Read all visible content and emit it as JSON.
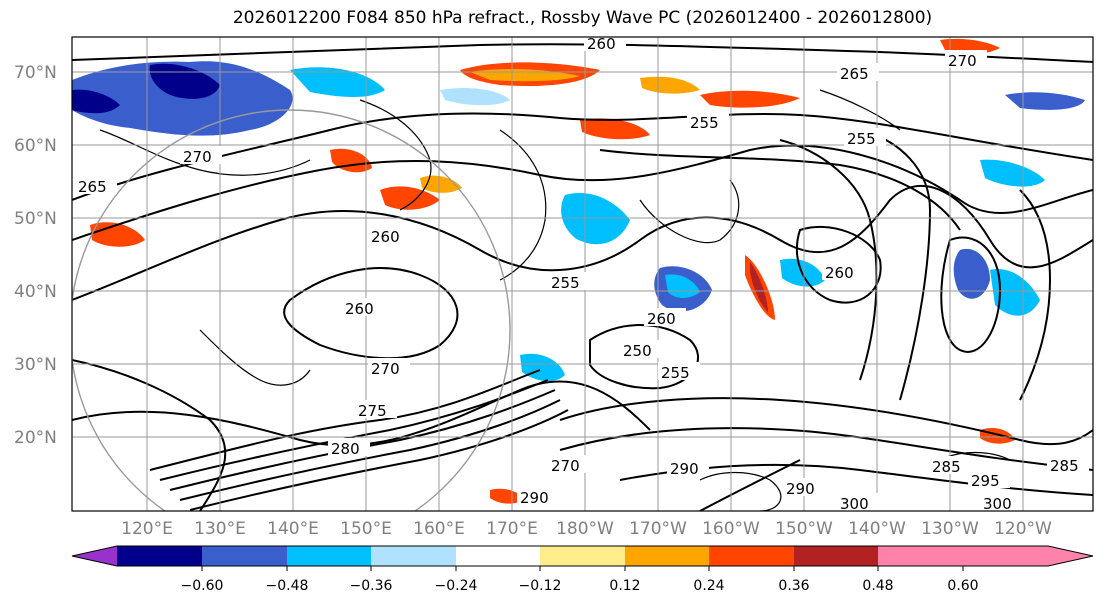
{
  "title": "2026012200 F084 850 hPa refract., Rossby Wave PC (2026012400 - 2026012800)",
  "lat_labels": [
    "70°N",
    "60°N",
    "50°N",
    "40°N",
    "30°N",
    "20°N"
  ],
  "lon_labels": [
    "120°E",
    "130°E",
    "140°E",
    "150°E",
    "160°E",
    "170°E",
    "180°W",
    "170°W",
    "160°W",
    "150°W",
    "140°W",
    "130°W",
    "120°W"
  ],
  "colorbar": {
    "colors": [
      "#9932cc",
      "#00008b",
      "#3a5fcd",
      "#00bfff",
      "#b0e2ff",
      "#ffffff",
      "#ffec8b",
      "#ffa500",
      "#ff4500",
      "#b22222",
      "#ff82ab"
    ],
    "ticks": [
      "−0.60",
      "−0.48",
      "−0.36",
      "−0.24",
      "−0.12",
      "0.12",
      "0.24",
      "0.36",
      "0.48",
      "0.60"
    ]
  },
  "contour_labels": [
    "260",
    "265",
    "270",
    "270",
    "255",
    "255",
    "260",
    "260",
    "265",
    "255",
    "260",
    "260",
    "250",
    "255",
    "270",
    "275",
    "280",
    "270",
    "285",
    "290",
    "290",
    "300",
    "295",
    "300",
    "285",
    "290"
  ]
}
